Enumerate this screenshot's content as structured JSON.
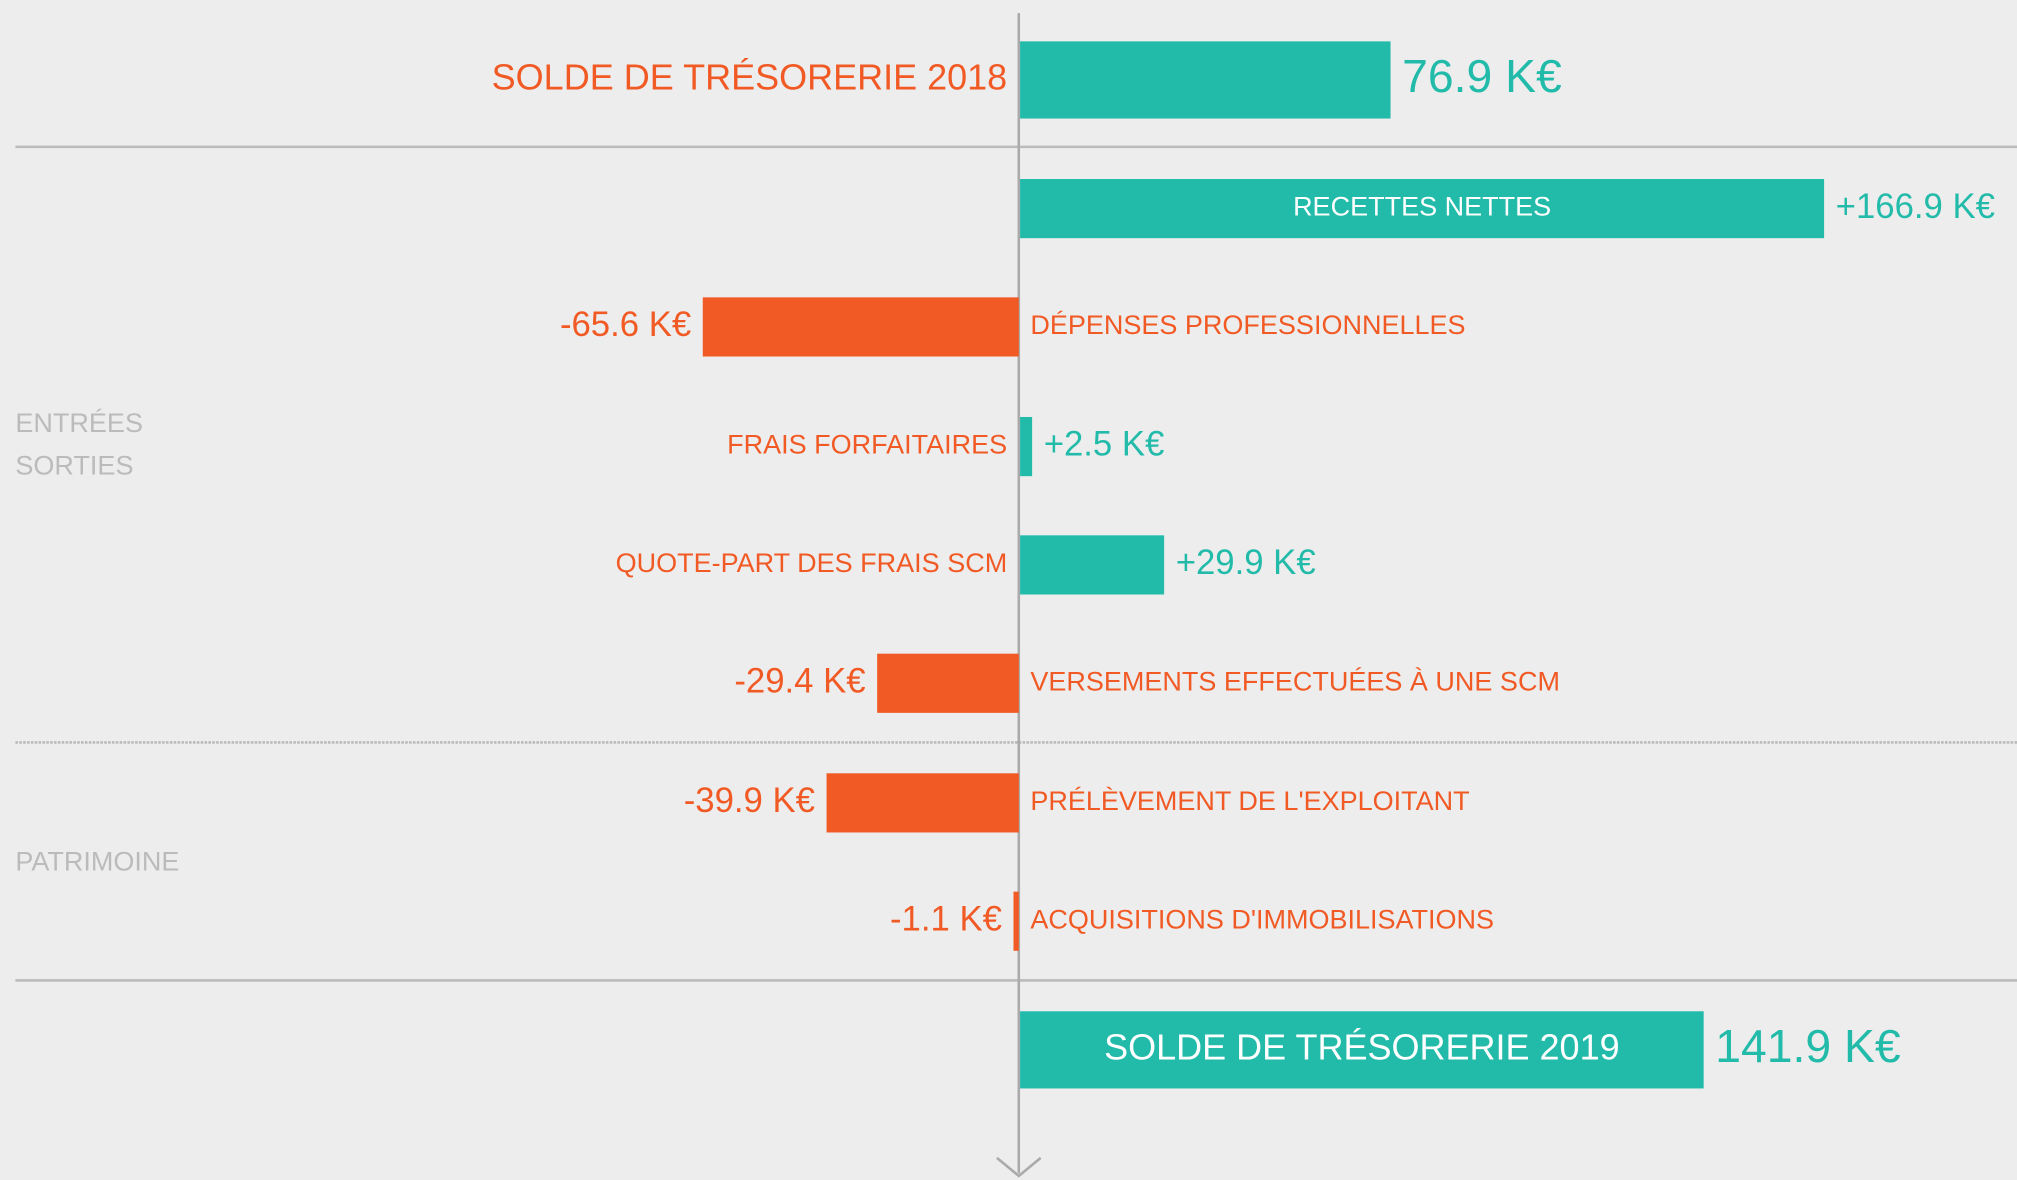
{
  "chart_data": {
    "type": "bar",
    "orientation": "horizontal",
    "categories": [
      "SOLDE DE TRÉSORERIE 2018",
      "RECETTES NETTES",
      "DÉPENSES PROFESSIONNELLES",
      "FRAIS FORFAITAIRES",
      "QUOTE-PART DES FRAIS SCM",
      "VERSEMENTS EFFECTUÉES À UNE SCM",
      "PRÉLÈVEMENT DE L'EXPLOITANT",
      "ACQUISITIONS D'IMMOBILISATIONS",
      "SOLDE DE TRÉSORERIE 2019"
    ],
    "values": [
      76.9,
      166.9,
      -65.6,
      2.5,
      29.9,
      -29.4,
      -39.9,
      -1.1,
      141.9
    ],
    "value_labels": [
      "76.9 K€",
      "+166.9 K€",
      "-65.6 K€",
      "+2.5 K€",
      "+29.9 K€",
      "-29.4 K€",
      "-39.9 K€",
      "-1.1 K€",
      "141.9 K€"
    ],
    "positive_color": "#22bbaa",
    "negative_color": "#f15a24",
    "groups": [
      {
        "labels": [
          "ENTRÉES",
          "SORTIES"
        ]
      },
      {
        "labels": [
          "PATRIMOINE"
        ]
      }
    ]
  }
}
